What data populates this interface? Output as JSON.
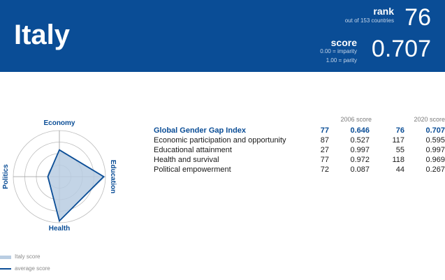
{
  "header": {
    "country": "Italy",
    "rank_label": "rank",
    "rank_sub": "out of 153 countries",
    "rank_value": "76",
    "score_label": "score",
    "score_sub1": "0.00 = imparity",
    "score_sub2": "1.00 = parity",
    "score_value": "0.707"
  },
  "radar": {
    "axes": [
      "Economy",
      "Education",
      "Health",
      "Politics"
    ],
    "country_values": [
      0.595,
      0.997,
      0.969,
      0.267
    ],
    "average_values": [
      0.58,
      0.96,
      0.96,
      0.25
    ],
    "fill_color": "#b9cde2",
    "line_color": "#0a4d96"
  },
  "legend": {
    "country": "Italy score",
    "average": "average score"
  },
  "table": {
    "col_2006": "2006 score",
    "col_2020": "2020 score",
    "rows": [
      {
        "name": "Global Gender Gap Index",
        "rank_2006": "77",
        "score_2006": "0.646",
        "rank_2020": "76",
        "score_2020": "0.707"
      },
      {
        "name": "Economic participation and opportunity",
        "rank_2006": "87",
        "score_2006": "0.527",
        "rank_2020": "117",
        "score_2020": "0.595"
      },
      {
        "name": "Educational attainment",
        "rank_2006": "27",
        "score_2006": "0.997",
        "rank_2020": "55",
        "score_2020": "0.997"
      },
      {
        "name": "Health and survival",
        "rank_2006": "77",
        "score_2006": "0.972",
        "rank_2020": "118",
        "score_2020": "0.969"
      },
      {
        "name": "Political empowerment",
        "rank_2006": "72",
        "score_2006": "0.087",
        "rank_2020": "44",
        "score_2020": "0.267"
      }
    ]
  }
}
